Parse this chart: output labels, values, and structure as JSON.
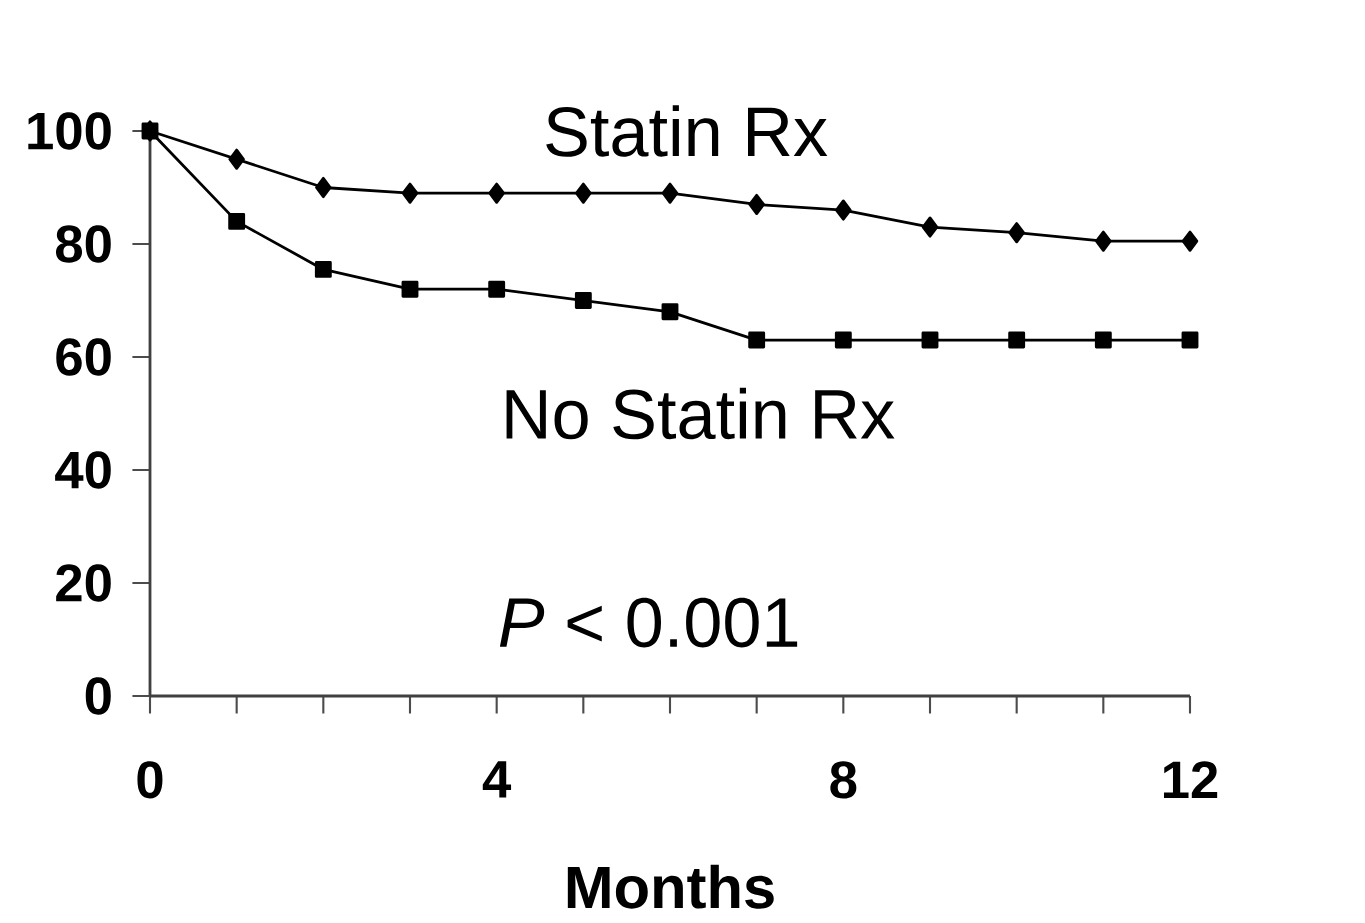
{
  "chart_data": {
    "type": "line",
    "xlabel": "Months",
    "x": [
      0,
      1,
      2,
      3,
      4,
      5,
      6,
      7,
      8,
      9,
      10,
      11,
      12
    ],
    "series": [
      {
        "name": "Statin Rx",
        "color": "#000000",
        "marker": "diamond",
        "values": [
          100,
          95,
          90,
          89,
          89,
          89,
          89,
          87,
          86,
          83,
          82,
          80.5,
          80.5
        ]
      },
      {
        "name": "No Statin Rx",
        "color": "#000000",
        "marker": "square",
        "values": [
          100,
          84,
          75.5,
          72,
          72,
          70,
          68,
          63,
          63,
          63,
          63,
          63,
          63
        ]
      }
    ],
    "xlim": [
      0,
      12
    ],
    "xticks": [
      0,
      4,
      8,
      12
    ],
    "ylim": [
      0,
      100
    ],
    "yticks": [
      0,
      20,
      40,
      60,
      80,
      100
    ],
    "grid": false,
    "legend": false,
    "line_style": "solid",
    "annotations": [
      "*P* < 0.001"
    ]
  }
}
